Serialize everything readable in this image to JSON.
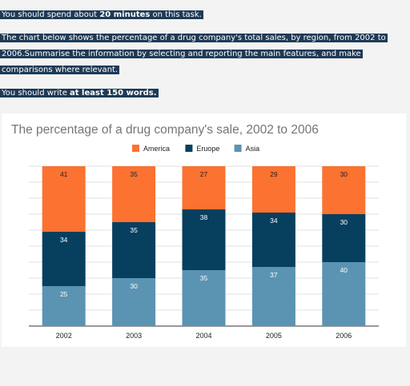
{
  "task": {
    "line1_pre": "You should spend about ",
    "line1_bold": "20 minutes",
    "line1_post": " on this task.",
    "line2": "The chart below shows the percentage of a drug company's total sales, by region, from 2002 to 2006.Summarise the information by selecting and reporting the main features, and make comparisons where relevant.",
    "line3_pre": "You should write ",
    "line3_bold": "at least 150 words."
  },
  "chart_data": {
    "type": "bar",
    "stacked": true,
    "title": "The percentage of a drug company's sale, 2002 to 2006",
    "categories": [
      "2002",
      "2003",
      "2004",
      "2005",
      "2006"
    ],
    "series": [
      {
        "name": "Asia",
        "color": "#5b93b3",
        "values": [
          25,
          30,
          35,
          37,
          40
        ]
      },
      {
        "name": "Eruope",
        "color": "#073f5f",
        "values": [
          34,
          35,
          38,
          34,
          30
        ]
      },
      {
        "name": "America",
        "color": "#fb7231",
        "values": [
          41,
          35,
          27,
          29,
          30
        ]
      }
    ],
    "legend": {
      "position": "top",
      "order": [
        "America",
        "Eruope",
        "Asia"
      ]
    },
    "ylim": [
      0,
      100
    ],
    "grid": true
  }
}
